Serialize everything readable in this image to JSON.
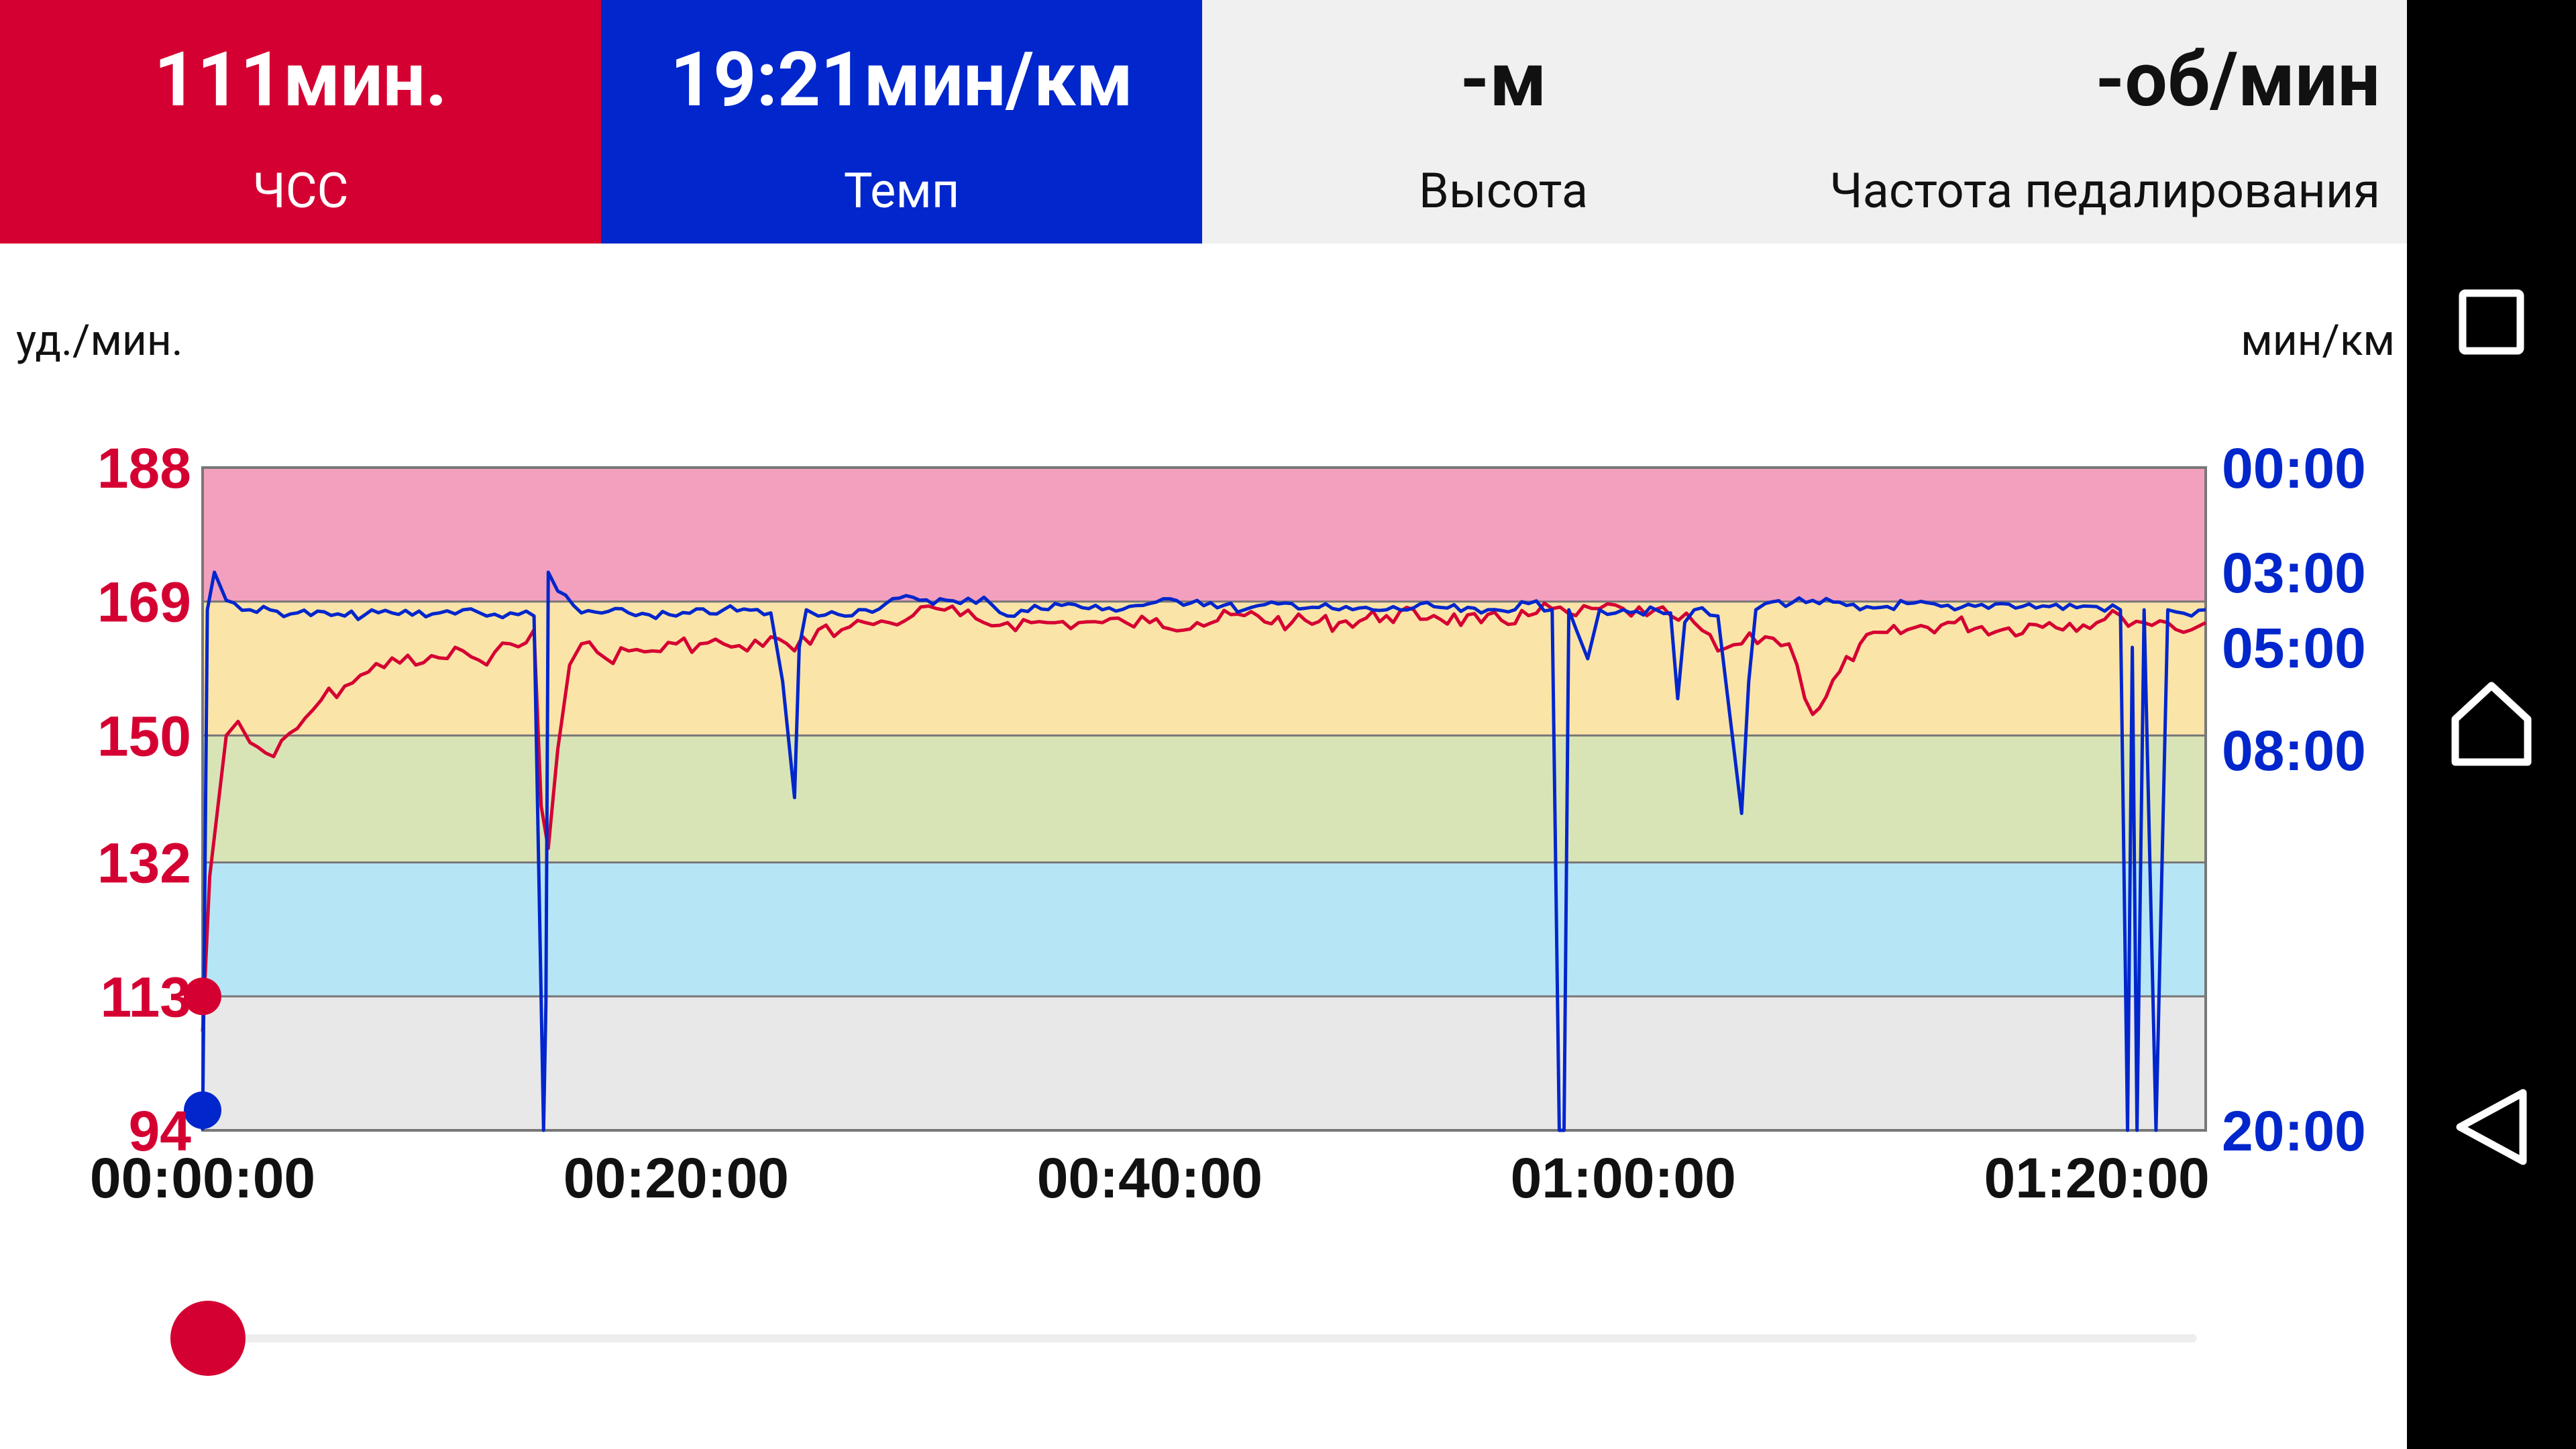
{
  "tiles": {
    "hr": {
      "value": "111мин.",
      "label": "ЧСС"
    },
    "pace": {
      "value": "19:21мин/км",
      "label": "Темп"
    },
    "altitude": {
      "value": "-м",
      "label": "Высота"
    },
    "cadence": {
      "value": "-об/мин",
      "label": "Частота педалирования"
    }
  },
  "axis_units": {
    "left": "уд./мин.",
    "right": "мин/км"
  },
  "colors": {
    "hr": "#d50032",
    "pace": "#0026cc",
    "zone5": "#f2a0be",
    "zone4": "#fbe4a8",
    "zone3": "#d9e4b6",
    "zone2": "#b6e6f6",
    "zone1": "#e8e8e8"
  },
  "chart_data": {
    "type": "line",
    "x_ticks": [
      "00:00:00",
      "00:20:00",
      "00:40:00",
      "01:00:00",
      "01:20:00"
    ],
    "x_range_minutes": [
      0,
      84.6
    ],
    "hr_axis": {
      "ticks": [
        "188",
        "169",
        "150",
        "132",
        "113",
        "94"
      ],
      "ylim": [
        94,
        188
      ]
    },
    "pace_axis": {
      "ticks": [
        "00:00",
        "03:00",
        "05:00",
        "08:00",
        "20:00"
      ]
    },
    "hr_zones": [
      {
        "from": 169,
        "to": 188,
        "color": "#f2a0be"
      },
      {
        "from": 150,
        "to": 169,
        "color": "#fbe4a8"
      },
      {
        "from": 132,
        "to": 150,
        "color": "#d9e4b6"
      },
      {
        "from": 113,
        "to": 132,
        "color": "#b6e6f6"
      },
      {
        "from": 94,
        "to": 113,
        "color": "#e8e8e8"
      }
    ],
    "series": [
      {
        "name": "ЧСС",
        "x": [
          0,
          0.3,
          1,
          1.5,
          2,
          3,
          4,
          5,
          6,
          7,
          8,
          9,
          10,
          11,
          12,
          13,
          14,
          14.3,
          14.6,
          15,
          15.5,
          16,
          17,
          18,
          19,
          20,
          21,
          22,
          23,
          24,
          25,
          26,
          27,
          28,
          29,
          30,
          31,
          32,
          33,
          34,
          35,
          36,
          37,
          38,
          39,
          40,
          42,
          44,
          46,
          48,
          50,
          52,
          54,
          56,
          57,
          58,
          59,
          60,
          61,
          62,
          63,
          64,
          65,
          66,
          67,
          68,
          70,
          72,
          74,
          76,
          78,
          80,
          81,
          82,
          83,
          84,
          84.6
        ],
        "y": [
          108,
          130,
          150,
          152,
          149,
          147,
          151,
          155,
          157,
          159,
          161,
          160,
          161,
          162,
          160,
          163,
          165,
          140,
          134,
          148,
          160,
          163,
          161,
          162,
          162,
          163,
          163,
          163,
          162,
          164,
          162,
          165,
          165,
          166,
          166,
          167,
          168,
          167,
          166,
          166,
          166,
          166,
          166,
          166,
          166,
          166,
          166,
          167,
          166,
          166,
          167,
          167,
          166,
          167,
          168,
          167,
          168,
          168,
          167,
          167,
          166,
          162,
          163,
          164,
          163,
          153,
          163,
          165,
          166,
          165,
          166,
          166,
          167,
          166,
          166,
          165,
          166
        ]
      },
      {
        "name": "Темп",
        "x": [
          0,
          0.2,
          0.5,
          1,
          2,
          4,
          6,
          8,
          10,
          11,
          12,
          13,
          14,
          14.4,
          14.5,
          14.6,
          15,
          16,
          18,
          20,
          22,
          24,
          24.5,
          25,
          25.2,
          25.5,
          26,
          28,
          30,
          32,
          33,
          34,
          36,
          38,
          40,
          42,
          44,
          46,
          48,
          50,
          52,
          54,
          56,
          57,
          57.3,
          57.5,
          57.7,
          58,
          58.5,
          59,
          60,
          62,
          62.3,
          62.6,
          63,
          64,
          65,
          65.3,
          65.6,
          66,
          68,
          70,
          72,
          74,
          76,
          78,
          80,
          81,
          81.3,
          81.5,
          81.7,
          82,
          82.5,
          83,
          84,
          84.6
        ],
        "y": [
          "20:00",
          "04:00",
          "03:00",
          "03:45",
          "04:00",
          "04:05",
          "04:10",
          "04:05",
          "04:05",
          "04:00",
          "04:10",
          "04:05",
          "04:10",
          "20:00",
          "16:00",
          "03:00",
          "03:30",
          "04:05",
          "04:05",
          "04:10",
          "04:00",
          "04:05",
          "06:00",
          "09:30",
          "05:00",
          "04:00",
          "04:10",
          "04:00",
          "03:40",
          "03:50",
          "03:40",
          "04:10",
          "03:50",
          "04:00",
          "03:50",
          "03:45",
          "04:00",
          "03:50",
          "04:00",
          "04:00",
          "03:55",
          "04:05",
          "03:50",
          "04:00",
          "20:00",
          "20:00",
          "04:00",
          "04:30",
          "05:20",
          "04:00",
          "04:00",
          "04:05",
          "06:30",
          "04:20",
          "04:00",
          "04:10",
          "10:00",
          "06:00",
          "04:00",
          "03:50",
          "03:45",
          "04:00",
          "03:50",
          "04:00",
          "03:50",
          "03:55",
          "03:55",
          "04:00",
          "20:00",
          "05:00",
          "20:00",
          "04:00",
          "20:00",
          "04:00",
          "04:10",
          "04:00"
        ]
      }
    ],
    "current_markers": {
      "hr": 113,
      "pace": "20:00"
    }
  },
  "slider": {
    "value_fraction": 0.0
  }
}
